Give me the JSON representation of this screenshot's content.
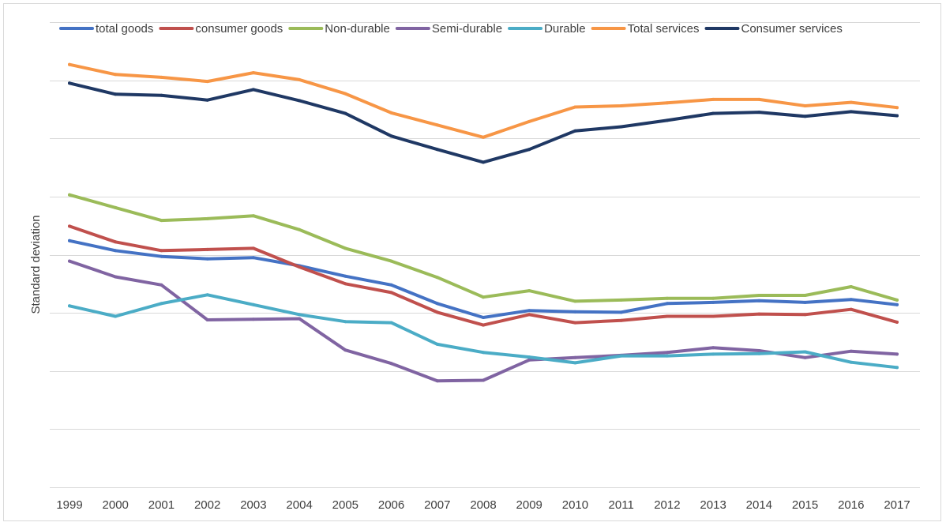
{
  "chart_data": {
    "type": "line",
    "title": "",
    "xlabel": "",
    "ylabel": "Standard deviation",
    "categories": [
      "1999",
      "2000",
      "2001",
      "2002",
      "2003",
      "2004",
      "2005",
      "2006",
      "2007",
      "2008",
      "2009",
      "2010",
      "2011",
      "2012",
      "2013",
      "2014",
      "2015",
      "2016",
      "2017"
    ],
    "ylim": [
      0,
      8
    ],
    "y_tick_labels_shown": false,
    "grid": true,
    "legend_position": "top",
    "series": [
      {
        "name": "total goods",
        "color": "#4472C4",
        "values": [
          4.24,
          4.07,
          3.97,
          3.93,
          3.95,
          3.81,
          3.63,
          3.48,
          3.16,
          2.92,
          3.04,
          3.02,
          3.01,
          3.16,
          3.18,
          3.21,
          3.18,
          3.23,
          3.14
        ]
      },
      {
        "name": "consumer goods",
        "color": "#C0504D",
        "values": [
          4.49,
          4.22,
          4.07,
          4.09,
          4.11,
          3.79,
          3.5,
          3.35,
          3.01,
          2.79,
          2.97,
          2.83,
          2.87,
          2.94,
          2.94,
          2.98,
          2.97,
          3.06,
          2.84
        ]
      },
      {
        "name": "Non-durable",
        "color": "#9BBB59",
        "values": [
          5.03,
          4.81,
          4.59,
          4.62,
          4.67,
          4.43,
          4.11,
          3.89,
          3.61,
          3.27,
          3.38,
          3.2,
          3.22,
          3.25,
          3.25,
          3.3,
          3.3,
          3.45,
          3.22
        ]
      },
      {
        "name": "Semi-durable",
        "color": "#8064A2",
        "values": [
          3.89,
          3.62,
          3.48,
          2.88,
          2.89,
          2.9,
          2.36,
          2.13,
          1.83,
          1.84,
          2.19,
          2.23,
          2.27,
          2.32,
          2.4,
          2.35,
          2.23,
          2.34,
          2.29
        ]
      },
      {
        "name": "Durable",
        "color": "#4BACC6",
        "values": [
          3.12,
          2.94,
          3.16,
          3.31,
          3.14,
          2.97,
          2.85,
          2.83,
          2.46,
          2.32,
          2.24,
          2.14,
          2.26,
          2.26,
          2.29,
          2.3,
          2.33,
          2.15,
          2.06
        ]
      },
      {
        "name": "Total services",
        "color": "#F79646",
        "values": [
          7.27,
          7.1,
          7.05,
          6.98,
          7.13,
          7.01,
          6.77,
          6.44,
          6.23,
          6.02,
          6.29,
          6.54,
          6.56,
          6.61,
          6.67,
          6.67,
          6.56,
          6.62,
          6.53
        ]
      },
      {
        "name": "Consumer services",
        "color": "#1F3864",
        "values": [
          6.95,
          6.76,
          6.74,
          6.66,
          6.84,
          6.65,
          6.43,
          6.04,
          5.81,
          5.59,
          5.81,
          6.13,
          6.2,
          6.31,
          6.43,
          6.45,
          6.38,
          6.46,
          6.39
        ]
      }
    ]
  }
}
